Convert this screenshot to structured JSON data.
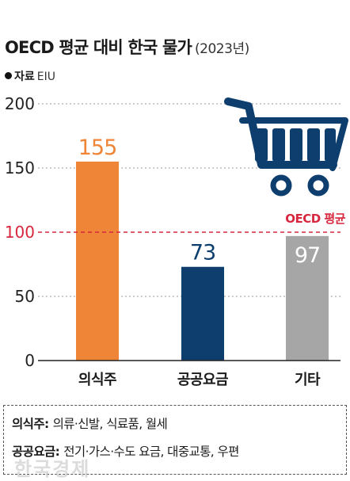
{
  "header": {
    "title": "OECD 평균 대비 한국 물가",
    "year": "(2023년)",
    "source_key": "자료",
    "source_value": "EIU"
  },
  "chart_data": {
    "type": "bar",
    "categories": [
      "의식주",
      "공공요금",
      "기타"
    ],
    "values": [
      155,
      73,
      97
    ],
    "colors": [
      "#ef8637",
      "#0e3e6e",
      "#a6a6a6"
    ],
    "value_label_colors": [
      "#ef8637",
      "#0e3e6e",
      "#ffffff"
    ],
    "ylim": [
      0,
      200
    ],
    "yticks": [
      0,
      50,
      100,
      150,
      200
    ],
    "grid": true,
    "reference_line": {
      "value": 100,
      "label": "OECD 평균",
      "color": "#d7263d"
    },
    "title": "OECD 평균 대비 한국 물가",
    "xlabel": "",
    "ylabel": ""
  },
  "decoration": {
    "cart_icon": "shopping-cart-icon",
    "cart_color": "#0e3e6e"
  },
  "notes": [
    {
      "key": "의식주:",
      "value": "의류·신발, 식료품, 월세"
    },
    {
      "key": "공공요금:",
      "value": "전기·가스·수도 요금, 대중교통, 우편"
    }
  ],
  "watermark": "한국경제"
}
